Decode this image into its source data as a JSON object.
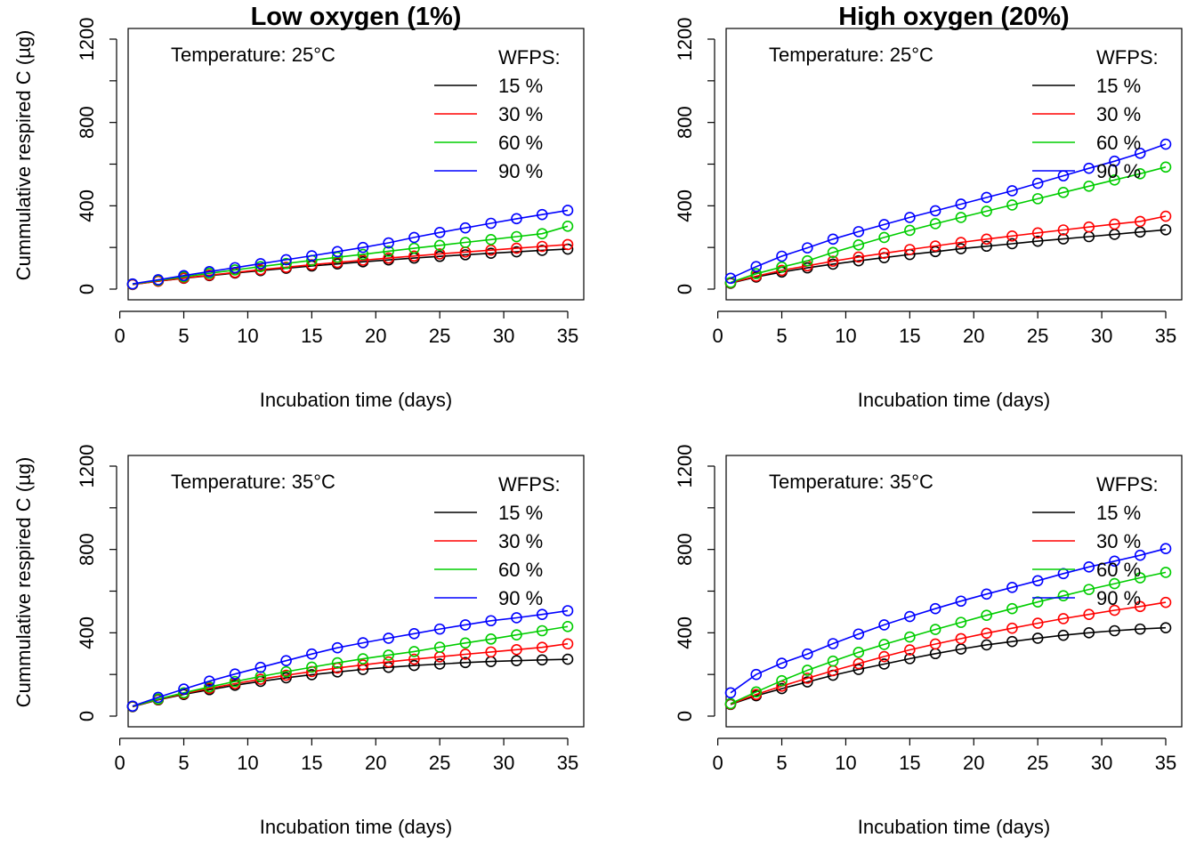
{
  "chart_data": [
    {
      "type": "line",
      "title": "Low oxygen (1%)",
      "annotation": "Temperature: 25°C",
      "xlabel": "Incubation time (days)",
      "ylabel": "Cummulative respired C (µg)",
      "xlim": [
        1,
        35
      ],
      "ylim": [
        0,
        1200
      ],
      "x_ticks": [
        "0",
        "5",
        "10",
        "15",
        "20",
        "25",
        "30",
        "35"
      ],
      "y_ticks": [
        "0",
        "400",
        "800",
        "1200"
      ],
      "legend_title": "WFPS:",
      "legend_position": "top-right",
      "x": [
        1,
        3,
        5,
        7,
        9,
        11,
        13,
        15,
        17,
        19,
        21,
        23,
        25,
        27,
        29,
        31,
        33,
        35
      ],
      "series": [
        {
          "name": "15 %",
          "color": "#000000",
          "values": [
            22,
            38,
            52,
            65,
            77,
            89,
            100,
            111,
            121,
            131,
            140,
            149,
            157,
            165,
            172,
            179,
            186,
            192
          ]
        },
        {
          "name": "30 %",
          "color": "#ff0000",
          "values": [
            22,
            38,
            53,
            67,
            80,
            93,
            105,
            117,
            128,
            139,
            149,
            159,
            169,
            178,
            187,
            196,
            205,
            214
          ]
        },
        {
          "name": "60 %",
          "color": "#00cd00",
          "values": [
            24,
            42,
            59,
            76,
            92,
            108,
            123,
            138,
            153,
            167,
            182,
            196,
            210,
            224,
            238,
            252,
            266,
            302
          ]
        },
        {
          "name": "90 %",
          "color": "#0000ff",
          "values": [
            25,
            45,
            65,
            84,
            103,
            122,
            141,
            160,
            180,
            200,
            222,
            248,
            272,
            294,
            316,
            338,
            358,
            378
          ]
        }
      ]
    },
    {
      "type": "line",
      "title": "High oxygen (20%)",
      "annotation": "Temperature: 25°C",
      "xlabel": "Incubation time (days)",
      "ylabel": "",
      "xlim": [
        1,
        35
      ],
      "ylim": [
        0,
        1200
      ],
      "x_ticks": [
        "0",
        "5",
        "10",
        "15",
        "20",
        "25",
        "30",
        "35"
      ],
      "y_ticks": [
        "0",
        "400",
        "800",
        "1200"
      ],
      "legend_title": "WFPS:",
      "legend_position": "top-right",
      "x": [
        1,
        3,
        5,
        7,
        9,
        11,
        13,
        15,
        17,
        19,
        21,
        23,
        25,
        27,
        29,
        31,
        33,
        35
      ],
      "series": [
        {
          "name": "15 %",
          "color": "#000000",
          "values": [
            28,
            58,
            82,
            102,
            120,
            136,
            151,
            166,
            180,
            194,
            206,
            218,
            230,
            241,
            252,
            263,
            274,
            285
          ]
        },
        {
          "name": "30 %",
          "color": "#ff0000",
          "values": [
            30,
            62,
            90,
            112,
            134,
            154,
            172,
            190,
            207,
            224,
            240,
            255,
            270,
            284,
            298,
            312,
            325,
            350
          ]
        },
        {
          "name": "60 %",
          "color": "#00cd00",
          "values": [
            32,
            74,
            106,
            136,
            176,
            212,
            248,
            282,
            314,
            344,
            374,
            404,
            434,
            464,
            494,
            524,
            554,
            586
          ]
        },
        {
          "name": "90 %",
          "color": "#0000ff",
          "values": [
            52,
            108,
            158,
            198,
            240,
            276,
            310,
            344,
            376,
            408,
            440,
            472,
            508,
            544,
            580,
            614,
            652,
            696
          ]
        }
      ]
    },
    {
      "type": "line",
      "title": "",
      "annotation": "Temperature: 35°C",
      "xlabel": "Incubation time (days)",
      "ylabel": "Cummulative respired C (µg)",
      "xlim": [
        1,
        35
      ],
      "ylim": [
        0,
        1200
      ],
      "x_ticks": [
        "0",
        "5",
        "10",
        "15",
        "20",
        "25",
        "30",
        "35"
      ],
      "y_ticks": [
        "0",
        "400",
        "800",
        "1200"
      ],
      "legend_title": "WFPS:",
      "legend_position": "top-right",
      "x": [
        1,
        3,
        5,
        7,
        9,
        11,
        13,
        15,
        17,
        19,
        21,
        23,
        25,
        27,
        29,
        31,
        33,
        35
      ],
      "series": [
        {
          "name": "15 %",
          "color": "#000000",
          "values": [
            45,
            78,
            104,
            127,
            148,
            167,
            184,
            199,
            212,
            224,
            234,
            243,
            250,
            257,
            262,
            266,
            270,
            273
          ]
        },
        {
          "name": "30 %",
          "color": "#ff0000",
          "values": [
            46,
            80,
            108,
            133,
            156,
            177,
            196,
            214,
            231,
            246,
            260,
            273,
            285,
            297,
            308,
            319,
            330,
            347
          ]
        },
        {
          "name": "60 %",
          "color": "#00cd00",
          "values": [
            47,
            82,
            112,
            140,
            166,
            190,
            213,
            235,
            256,
            275,
            293,
            310,
            331,
            351,
            370,
            390,
            410,
            430
          ]
        },
        {
          "name": "90 %",
          "color": "#0000ff",
          "values": [
            48,
            90,
            130,
            168,
            202,
            234,
            266,
            298,
            328,
            352,
            374,
            396,
            418,
            438,
            458,
            472,
            488,
            506
          ]
        }
      ]
    },
    {
      "type": "line",
      "title": "",
      "annotation": "Temperature: 35°C",
      "xlabel": "Incubation time (days)",
      "ylabel": "",
      "xlim": [
        1,
        35
      ],
      "ylim": [
        0,
        1200
      ],
      "x_ticks": [
        "0",
        "5",
        "10",
        "15",
        "20",
        "25",
        "30",
        "35"
      ],
      "y_ticks": [
        "0",
        "400",
        "800",
        "1200"
      ],
      "legend_title": "WFPS:",
      "legend_position": "top-right",
      "x": [
        1,
        3,
        5,
        7,
        9,
        11,
        13,
        15,
        17,
        19,
        21,
        23,
        25,
        27,
        29,
        31,
        33,
        35
      ],
      "series": [
        {
          "name": "15 %",
          "color": "#000000",
          "values": [
            56,
            98,
            132,
            164,
            196,
            224,
            250,
            276,
            300,
            322,
            342,
            358,
            374,
            388,
            400,
            410,
            418,
            424
          ]
        },
        {
          "name": "30 %",
          "color": "#ff0000",
          "values": [
            58,
            104,
            144,
            182,
            218,
            252,
            286,
            318,
            346,
            372,
            398,
            422,
            446,
            468,
            488,
            508,
            526,
            546
          ]
        },
        {
          "name": "60 %",
          "color": "#00cd00",
          "values": [
            60,
            116,
            170,
            220,
            264,
            306,
            344,
            380,
            416,
            450,
            484,
            516,
            548,
            578,
            608,
            636,
            664,
            690
          ]
        },
        {
          "name": "90 %",
          "color": "#0000ff",
          "values": [
            112,
            200,
            254,
            298,
            348,
            394,
            438,
            478,
            516,
            552,
            586,
            618,
            650,
            684,
            716,
            744,
            772,
            804
          ]
        }
      ]
    }
  ]
}
